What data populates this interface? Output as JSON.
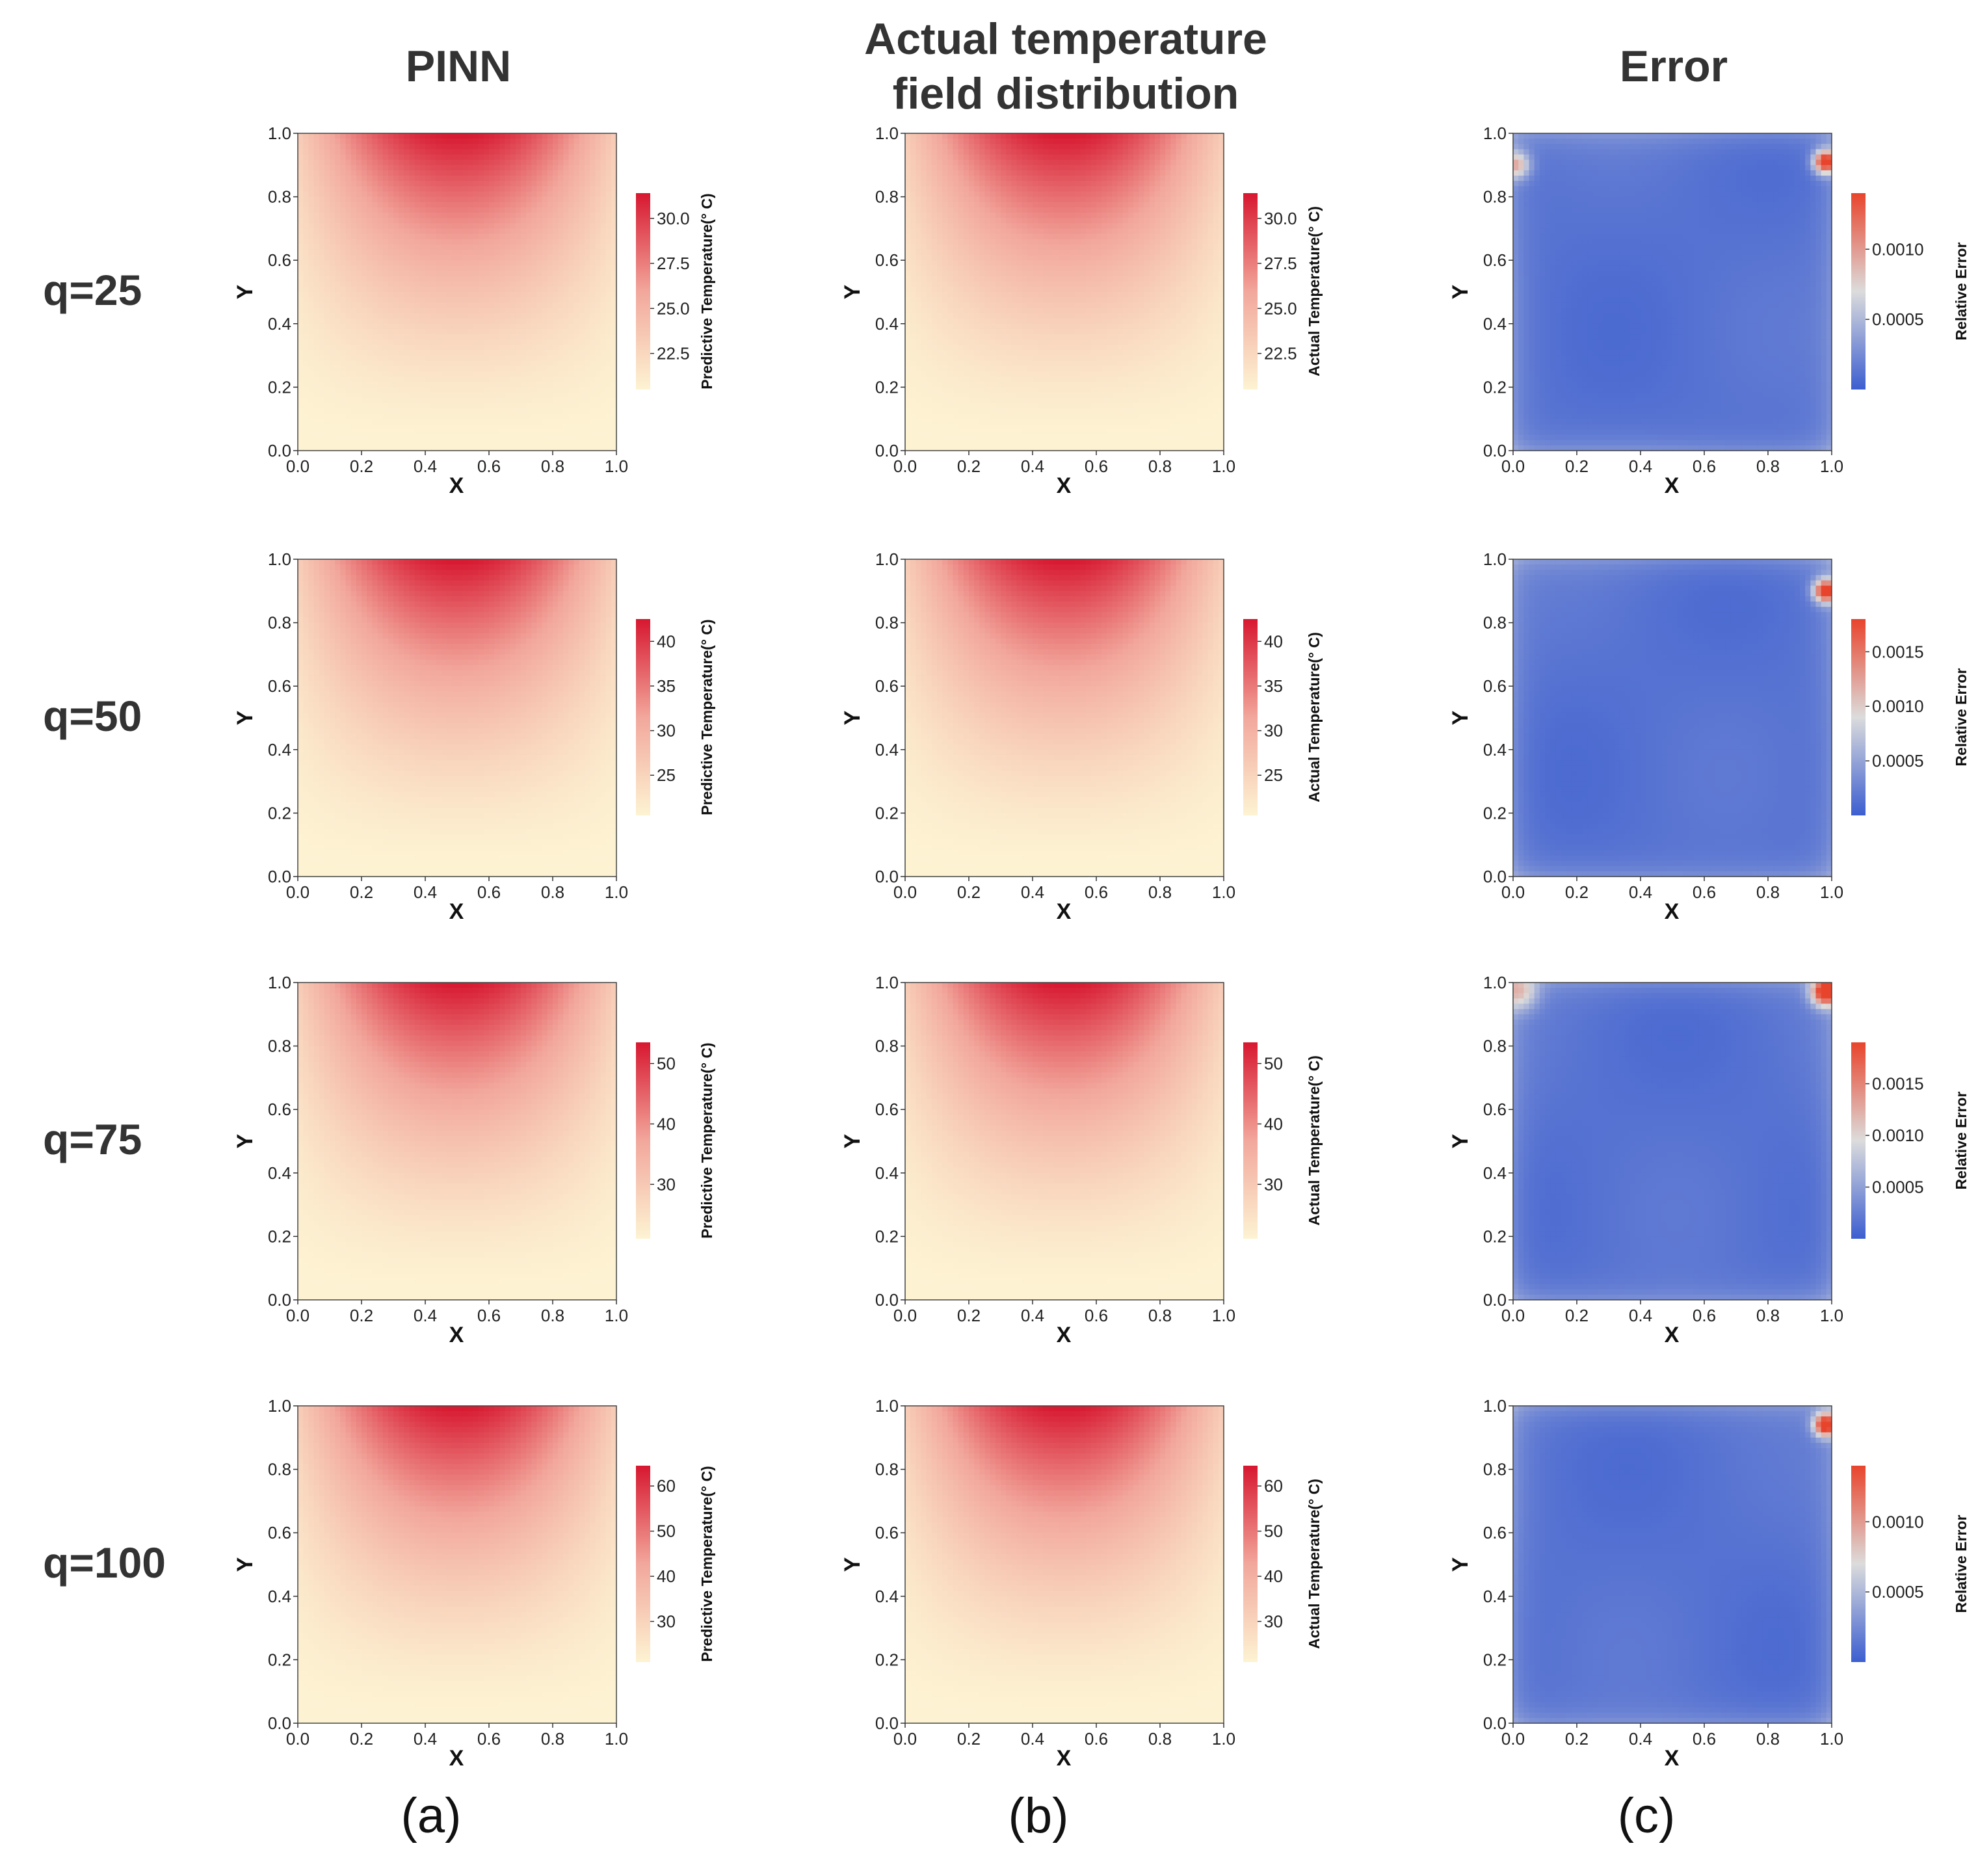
{
  "figure": {
    "column_titles": [
      "PINN",
      "Actual temperature field distribution",
      "Error"
    ],
    "column_title_lines": [
      [
        "PINN"
      ],
      [
        "Actual temperature",
        "field distribution"
      ],
      [
        "Error"
      ]
    ],
    "row_labels": [
      "q=25",
      "q=50",
      "q=75",
      "q=100"
    ],
    "panel_labels": [
      "(a)",
      "(b)",
      "(c)"
    ]
  },
  "colors": {
    "temp_low": "#fdf3d3",
    "temp_mid": "#f2a79c",
    "temp_high": "#d7172f",
    "err_low": "#3c5ed0",
    "err_mid": "#dcdcdc",
    "err_high": "#e8442c",
    "text": "#333333"
  },
  "chart_data": [
    {
      "id": "pinn-q25",
      "type": "heatmap",
      "title": "PINN",
      "row_label": "q=25",
      "xlabel": "X",
      "ylabel": "Y",
      "xlim": [
        0,
        1
      ],
      "ylim": [
        0,
        1
      ],
      "xticks": [
        "0.0",
        "0.2",
        "0.4",
        "0.6",
        "0.8",
        "1.0"
      ],
      "yticks": [
        "0.0",
        "0.2",
        "0.4",
        "0.6",
        "0.8",
        "1.0"
      ],
      "colorbar": {
        "label": "Predictive Temperature(° C)",
        "range": [
          20.5,
          31.4
        ],
        "ticks": [
          "22.5",
          "25.0",
          "27.5",
          "30.0"
        ],
        "tick_values": [
          22.5,
          25.0,
          27.5,
          30.0
        ],
        "cmap": "temp"
      },
      "field": "temperature"
    },
    {
      "id": "actual-q25",
      "type": "heatmap",
      "title": "Actual temperature field distribution",
      "row_label": "q=25",
      "xlabel": "X",
      "ylabel": "Y",
      "xlim": [
        0,
        1
      ],
      "ylim": [
        0,
        1
      ],
      "xticks": [
        "0.0",
        "0.2",
        "0.4",
        "0.6",
        "0.8",
        "1.0"
      ],
      "yticks": [
        "0.0",
        "0.2",
        "0.4",
        "0.6",
        "0.8",
        "1.0"
      ],
      "colorbar": {
        "label": "Actual Temperature(° C)",
        "range": [
          20.5,
          31.4
        ],
        "ticks": [
          "22.5",
          "25.0",
          "27.5",
          "30.0"
        ],
        "tick_values": [
          22.5,
          25.0,
          27.5,
          30.0
        ],
        "cmap": "temp"
      },
      "field": "temperature"
    },
    {
      "id": "error-q25",
      "type": "heatmap",
      "title": "Error",
      "row_label": "q=25",
      "xlabel": "X",
      "ylabel": "Y",
      "xlim": [
        0,
        1
      ],
      "ylim": [
        0,
        1
      ],
      "xticks": [
        "0.0",
        "0.2",
        "0.4",
        "0.6",
        "0.8",
        "1.0"
      ],
      "yticks": [
        "0.0",
        "0.2",
        "0.4",
        "0.6",
        "0.8",
        "1.0"
      ],
      "colorbar": {
        "label": "Relative Error",
        "range": [
          0.0,
          0.0014
        ],
        "ticks": [
          "0.0005",
          "0.0010"
        ],
        "tick_values": [
          0.0005,
          0.001
        ],
        "cmap": "error"
      },
      "field": "error",
      "hotspots": [
        [
          0.98,
          0.91,
          1.0,
          0.025
        ],
        [
          0.01,
          0.9,
          0.5,
          0.03
        ]
      ]
    },
    {
      "id": "pinn-q50",
      "type": "heatmap",
      "title": "PINN",
      "row_label": "q=50",
      "xlabel": "X",
      "ylabel": "Y",
      "xlim": [
        0,
        1
      ],
      "ylim": [
        0,
        1
      ],
      "xticks": [
        "0.0",
        "0.2",
        "0.4",
        "0.6",
        "0.8",
        "1.0"
      ],
      "yticks": [
        "0.0",
        "0.2",
        "0.4",
        "0.6",
        "0.8",
        "1.0"
      ],
      "colorbar": {
        "label": "Predictive Temperature(° C)",
        "range": [
          20.5,
          42.5
        ],
        "ticks": [
          "25",
          "30",
          "35",
          "40"
        ],
        "tick_values": [
          25,
          30,
          35,
          40
        ],
        "cmap": "temp"
      },
      "field": "temperature"
    },
    {
      "id": "actual-q50",
      "type": "heatmap",
      "title": "Actual temperature field distribution",
      "row_label": "q=50",
      "xlabel": "X",
      "ylabel": "Y",
      "xlim": [
        0,
        1
      ],
      "ylim": [
        0,
        1
      ],
      "xticks": [
        "0.0",
        "0.2",
        "0.4",
        "0.6",
        "0.8",
        "1.0"
      ],
      "yticks": [
        "0.0",
        "0.2",
        "0.4",
        "0.6",
        "0.8",
        "1.0"
      ],
      "colorbar": {
        "label": "Actual Temperature(° C)",
        "range": [
          20.5,
          42.5
        ],
        "ticks": [
          "25",
          "30",
          "35",
          "40"
        ],
        "tick_values": [
          25,
          30,
          35,
          40
        ],
        "cmap": "temp"
      },
      "field": "temperature"
    },
    {
      "id": "error-q50",
      "type": "heatmap",
      "title": "Error",
      "row_label": "q=50",
      "xlabel": "X",
      "ylabel": "Y",
      "xlim": [
        0,
        1
      ],
      "ylim": [
        0,
        1
      ],
      "xticks": [
        "0.0",
        "0.2",
        "0.4",
        "0.6",
        "0.8",
        "1.0"
      ],
      "yticks": [
        "0.0",
        "0.2",
        "0.4",
        "0.6",
        "0.8",
        "1.0"
      ],
      "colorbar": {
        "label": "Relative Error",
        "range": [
          0.0,
          0.0018
        ],
        "ticks": [
          "0.0005",
          "0.0010",
          "0.0015"
        ],
        "tick_values": [
          0.0005,
          0.001,
          0.0015
        ],
        "cmap": "error"
      },
      "field": "error",
      "hotspots": [
        [
          0.98,
          0.9,
          1.0,
          0.025
        ]
      ]
    },
    {
      "id": "pinn-q75",
      "type": "heatmap",
      "title": "PINN",
      "row_label": "q=75",
      "xlabel": "X",
      "ylabel": "Y",
      "xlim": [
        0,
        1
      ],
      "ylim": [
        0,
        1
      ],
      "xticks": [
        "0.0",
        "0.2",
        "0.4",
        "0.6",
        "0.8",
        "1.0"
      ],
      "yticks": [
        "0.0",
        "0.2",
        "0.4",
        "0.6",
        "0.8",
        "1.0"
      ],
      "colorbar": {
        "label": "Predictive Temperature(° C)",
        "range": [
          21.0,
          53.5
        ],
        "ticks": [
          "30",
          "40",
          "50"
        ],
        "tick_values": [
          30,
          40,
          50
        ],
        "cmap": "temp"
      },
      "field": "temperature"
    },
    {
      "id": "actual-q75",
      "type": "heatmap",
      "title": "Actual temperature field distribution",
      "row_label": "q=75",
      "xlabel": "X",
      "ylabel": "Y",
      "xlim": [
        0,
        1
      ],
      "ylim": [
        0,
        1
      ],
      "xticks": [
        "0.0",
        "0.2",
        "0.4",
        "0.6",
        "0.8",
        "1.0"
      ],
      "yticks": [
        "0.0",
        "0.2",
        "0.4",
        "0.6",
        "0.8",
        "1.0"
      ],
      "colorbar": {
        "label": "Actual Temperature(° C)",
        "range": [
          21.0,
          53.5
        ],
        "ticks": [
          "30",
          "40",
          "50"
        ],
        "tick_values": [
          30,
          40,
          50
        ],
        "cmap": "temp"
      },
      "field": "temperature"
    },
    {
      "id": "error-q75",
      "type": "heatmap",
      "title": "Error",
      "row_label": "q=75",
      "xlabel": "X",
      "ylabel": "Y",
      "xlim": [
        0,
        1
      ],
      "ylim": [
        0,
        1
      ],
      "xticks": [
        "0.0",
        "0.2",
        "0.4",
        "0.6",
        "0.8",
        "1.0"
      ],
      "yticks": [
        "0.0",
        "0.2",
        "0.4",
        "0.6",
        "0.8",
        "1.0"
      ],
      "colorbar": {
        "label": "Relative Error",
        "range": [
          0.0,
          0.0019
        ],
        "ticks": [
          "0.0005",
          "0.0010",
          "0.0015"
        ],
        "tick_values": [
          0.0005,
          0.001,
          0.0015
        ],
        "cmap": "error"
      },
      "field": "error",
      "hotspots": [
        [
          0.98,
          0.97,
          1.0,
          0.03
        ],
        [
          0.02,
          0.97,
          0.4,
          0.04
        ]
      ]
    },
    {
      "id": "pinn-q100",
      "type": "heatmap",
      "title": "PINN",
      "row_label": "q=100",
      "xlabel": "X",
      "ylabel": "Y",
      "xlim": [
        0,
        1
      ],
      "ylim": [
        0,
        1
      ],
      "xticks": [
        "0.0",
        "0.2",
        "0.4",
        "0.6",
        "0.8",
        "1.0"
      ],
      "yticks": [
        "0.0",
        "0.2",
        "0.4",
        "0.6",
        "0.8",
        "1.0"
      ],
      "colorbar": {
        "label": "Predictive Temperature(° C)",
        "range": [
          21.0,
          64.5
        ],
        "ticks": [
          "30",
          "40",
          "50",
          "60"
        ],
        "tick_values": [
          30,
          40,
          50,
          60
        ],
        "cmap": "temp"
      },
      "field": "temperature"
    },
    {
      "id": "actual-q100",
      "type": "heatmap",
      "title": "Actual temperature field distribution",
      "row_label": "q=100",
      "xlabel": "X",
      "ylabel": "Y",
      "xlim": [
        0,
        1
      ],
      "ylim": [
        0,
        1
      ],
      "xticks": [
        "0.0",
        "0.2",
        "0.4",
        "0.6",
        "0.8",
        "1.0"
      ],
      "yticks": [
        "0.0",
        "0.2",
        "0.4",
        "0.6",
        "0.8",
        "1.0"
      ],
      "colorbar": {
        "label": "Actual Temperature(° C)",
        "range": [
          21.0,
          64.5
        ],
        "ticks": [
          "30",
          "40",
          "50",
          "60"
        ],
        "tick_values": [
          30,
          40,
          50,
          60
        ],
        "cmap": "temp"
      },
      "field": "temperature"
    },
    {
      "id": "error-q100",
      "type": "heatmap",
      "title": "Error",
      "row_label": "q=100",
      "xlabel": "X",
      "ylabel": "Y",
      "xlim": [
        0,
        1
      ],
      "ylim": [
        0,
        1
      ],
      "xticks": [
        "0.0",
        "0.2",
        "0.4",
        "0.6",
        "0.8",
        "1.0"
      ],
      "yticks": [
        "0.0",
        "0.2",
        "0.4",
        "0.6",
        "0.8",
        "1.0"
      ],
      "colorbar": {
        "label": "Relative Error",
        "range": [
          0.0,
          0.0014
        ],
        "ticks": [
          "0.0005",
          "0.0010"
        ],
        "tick_values": [
          0.0005,
          0.001
        ],
        "cmap": "error"
      },
      "field": "error",
      "hotspots": [
        [
          0.98,
          0.94,
          1.0,
          0.025
        ]
      ]
    }
  ]
}
